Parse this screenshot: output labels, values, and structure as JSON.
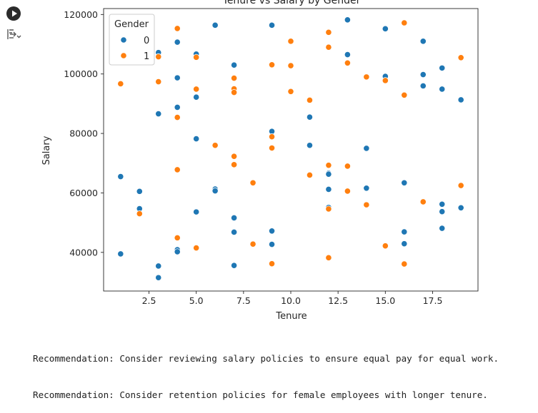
{
  "chart_data": {
    "type": "scatter",
    "title": "Tenure vs Salary by Gender",
    "xlabel": "Tenure",
    "ylabel": "Salary",
    "xlim": [
      0.1,
      19.9
    ],
    "ylim": [
      27000,
      122000
    ],
    "xticks": [
      2.5,
      5.0,
      7.5,
      10.0,
      12.5,
      15.0,
      17.5
    ],
    "xtick_labels": [
      "2.5",
      "5.0",
      "7.5",
      "10.0",
      "12.5",
      "15.0",
      "17.5"
    ],
    "yticks": [
      40000,
      60000,
      80000,
      100000,
      120000
    ],
    "ytick_labels": [
      "40000",
      "60000",
      "80000",
      "100000",
      "120000"
    ],
    "grid": false,
    "legend": {
      "title": "Gender",
      "placement": "top-left"
    },
    "series": [
      {
        "name": "0",
        "color": "#1f77b4",
        "points": [
          [
            1,
            65500
          ],
          [
            1,
            39500
          ],
          [
            2,
            60500
          ],
          [
            2,
            54700
          ],
          [
            3,
            107200
          ],
          [
            3,
            86600
          ],
          [
            3,
            35400
          ],
          [
            3,
            31500
          ],
          [
            4,
            110700
          ],
          [
            4,
            98700
          ],
          [
            4,
            88800
          ],
          [
            4,
            40900
          ],
          [
            4,
            40200
          ],
          [
            5,
            106700
          ],
          [
            5,
            92200
          ],
          [
            5,
            78200
          ],
          [
            5,
            53600
          ],
          [
            6,
            116400
          ],
          [
            6,
            61300
          ],
          [
            6,
            60700
          ],
          [
            7,
            103000
          ],
          [
            7,
            51600
          ],
          [
            7,
            46800
          ],
          [
            7,
            35600
          ],
          [
            9,
            116400
          ],
          [
            9,
            80700
          ],
          [
            9,
            47200
          ],
          [
            9,
            42700
          ],
          [
            11,
            85500
          ],
          [
            11,
            76000
          ],
          [
            12,
            66600
          ],
          [
            12,
            66300
          ],
          [
            12,
            61200
          ],
          [
            12,
            55100
          ],
          [
            13,
            118200
          ],
          [
            13,
            106500
          ],
          [
            14,
            75000
          ],
          [
            14,
            61600
          ],
          [
            15,
            115200
          ],
          [
            15,
            99200
          ],
          [
            16,
            63400
          ],
          [
            16,
            46900
          ],
          [
            16,
            42900
          ],
          [
            17,
            111000
          ],
          [
            17,
            99800
          ],
          [
            17,
            96000
          ],
          [
            18,
            102000
          ],
          [
            18,
            94900
          ],
          [
            18,
            56200
          ],
          [
            18,
            53700
          ],
          [
            18,
            48100
          ],
          [
            19,
            91300
          ],
          [
            19,
            55000
          ]
        ]
      },
      {
        "name": "1",
        "color": "#ff7f0e",
        "points": [
          [
            1,
            96700
          ],
          [
            2,
            53000
          ],
          [
            3,
            105800
          ],
          [
            3,
            97400
          ],
          [
            4,
            115300
          ],
          [
            4,
            85400
          ],
          [
            4,
            67800
          ],
          [
            4,
            44900
          ],
          [
            5,
            105600
          ],
          [
            5,
            94900
          ],
          [
            5,
            41500
          ],
          [
            6,
            76000
          ],
          [
            7,
            98600
          ],
          [
            7,
            95000
          ],
          [
            7,
            93800
          ],
          [
            7,
            72300
          ],
          [
            7,
            69500
          ],
          [
            8,
            63400
          ],
          [
            8,
            42800
          ],
          [
            9,
            103100
          ],
          [
            9,
            78900
          ],
          [
            9,
            75100
          ],
          [
            9,
            36200
          ],
          [
            10,
            111000
          ],
          [
            10,
            102800
          ],
          [
            10,
            94100
          ],
          [
            11,
            91200
          ],
          [
            11,
            66000
          ],
          [
            12,
            114000
          ],
          [
            12,
            109000
          ],
          [
            12,
            69300
          ],
          [
            12,
            54600
          ],
          [
            12,
            38200
          ],
          [
            13,
            103700
          ],
          [
            13,
            69000
          ],
          [
            13,
            60600
          ],
          [
            14,
            99000
          ],
          [
            14,
            56000
          ],
          [
            15,
            97800
          ],
          [
            15,
            42200
          ],
          [
            16,
            117200
          ],
          [
            16,
            92900
          ],
          [
            16,
            36100
          ],
          [
            17,
            57000
          ],
          [
            19,
            105500
          ],
          [
            19,
            62500
          ]
        ]
      }
    ]
  },
  "recommendations": [
    "Recommendation: Consider reviewing salary policies to ensure equal pay for equal work.",
    "Recommendation: Consider retention policies for female employees with longer tenure."
  ]
}
